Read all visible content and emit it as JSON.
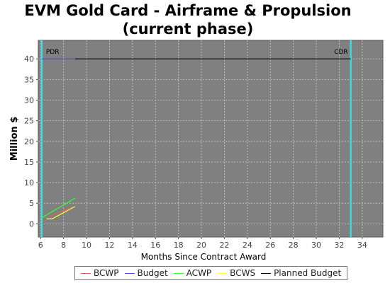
{
  "chart_data": {
    "type": "line",
    "title": "EVM Gold Card - Airframe & Propulsion (current phase)",
    "xlabel": "Months Since Contract Award",
    "ylabel": "Million $",
    "xlim": [
      5.8,
      35.8
    ],
    "ylim": [
      -3.2,
      44.5
    ],
    "xticks": [
      6,
      8,
      10,
      12,
      14,
      16,
      18,
      20,
      22,
      24,
      26,
      28,
      30,
      32,
      34
    ],
    "yticks": [
      0,
      5,
      10,
      15,
      20,
      25,
      30,
      35,
      40
    ],
    "grid": true,
    "legend_position": "bottom",
    "milestones": [
      {
        "label": "PDR",
        "x": 6.1,
        "color": "#40d8d8"
      },
      {
        "label": "CDR",
        "x": 33.0,
        "color": "#40d8d8"
      }
    ],
    "series": [
      {
        "name": "BCWP",
        "color": "#e06060",
        "x": [
          6.5,
          9.0
        ],
        "y": [
          1.6,
          4.2
        ]
      },
      {
        "name": "Budget",
        "color": "#4a4ae0",
        "x": [
          6.1,
          9.0
        ],
        "y": [
          40.0,
          40.0
        ]
      },
      {
        "name": "ACWP",
        "color": "#30ff30",
        "x": [
          6.0,
          9.0
        ],
        "y": [
          1.3,
          6.2
        ]
      },
      {
        "name": "BCWS",
        "color": "#ffff30",
        "x": [
          6.5,
          7.0,
          9.0
        ],
        "y": [
          1.2,
          1.2,
          4.2
        ]
      },
      {
        "name": "Planned Budget",
        "color": "#000000",
        "x": [
          9.0,
          33.0
        ],
        "y": [
          40.0,
          40.0
        ]
      }
    ]
  }
}
